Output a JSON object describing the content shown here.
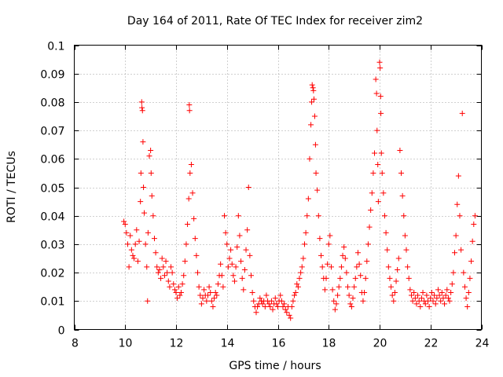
{
  "chart_data": {
    "type": "scatter",
    "title": "Day 164 of 2011, Rate Of TEC Index for receiver zim2",
    "xlabel": "GPS time / hours",
    "ylabel": "ROTI / TECUs",
    "xlim": [
      8,
      24
    ],
    "ylim": [
      0,
      0.1
    ],
    "xticks": [
      8,
      10,
      12,
      14,
      16,
      18,
      20,
      22,
      24
    ],
    "yticks": [
      0,
      0.01,
      0.02,
      0.03,
      0.04,
      0.05,
      0.06,
      0.07,
      0.08,
      0.09,
      0.1
    ],
    "xtick_labels": [
      "8",
      "10",
      "12",
      "14",
      "16",
      "18",
      "20",
      "22",
      "24"
    ],
    "ytick_labels": [
      "0",
      "0.01",
      "0.02",
      "0.03",
      "0.04",
      "0.05",
      "0.06",
      "0.07",
      "0.08",
      "0.09",
      "0.1"
    ],
    "grid": true,
    "marker": "+",
    "color": "#ff0000",
    "series": [
      {
        "name": "ROTI",
        "points": [
          [
            9.95,
            0.038
          ],
          [
            10.0,
            0.037
          ],
          [
            10.05,
            0.034
          ],
          [
            10.1,
            0.03
          ],
          [
            10.15,
            0.022
          ],
          [
            10.2,
            0.033
          ],
          [
            10.25,
            0.028
          ],
          [
            10.3,
            0.026
          ],
          [
            10.35,
            0.025
          ],
          [
            10.4,
            0.03
          ],
          [
            10.45,
            0.035
          ],
          [
            10.5,
            0.024
          ],
          [
            10.55,
            0.031
          ],
          [
            10.6,
            0.045
          ],
          [
            10.62,
            0.055
          ],
          [
            10.65,
            0.08
          ],
          [
            10.66,
            0.078
          ],
          [
            10.68,
            0.077
          ],
          [
            10.7,
            0.066
          ],
          [
            10.72,
            0.05
          ],
          [
            10.75,
            0.041
          ],
          [
            10.8,
            0.03
          ],
          [
            10.85,
            0.022
          ],
          [
            10.88,
            0.01
          ],
          [
            10.9,
            0.034
          ],
          [
            10.95,
            0.061
          ],
          [
            11.0,
            0.063
          ],
          [
            11.02,
            0.055
          ],
          [
            11.05,
            0.047
          ],
          [
            11.1,
            0.04
          ],
          [
            11.15,
            0.032
          ],
          [
            11.2,
            0.027
          ],
          [
            11.25,
            0.022
          ],
          [
            11.3,
            0.02
          ],
          [
            11.35,
            0.021
          ],
          [
            11.4,
            0.018
          ],
          [
            11.45,
            0.025
          ],
          [
            11.5,
            0.022
          ],
          [
            11.55,
            0.019
          ],
          [
            11.6,
            0.024
          ],
          [
            11.65,
            0.02
          ],
          [
            11.7,
            0.017
          ],
          [
            11.75,
            0.015
          ],
          [
            11.8,
            0.022
          ],
          [
            11.85,
            0.02
          ],
          [
            11.9,
            0.016
          ],
          [
            11.95,
            0.014
          ],
          [
            12.0,
            0.013
          ],
          [
            12.05,
            0.011
          ],
          [
            12.1,
            0.015
          ],
          [
            12.15,
            0.012
          ],
          [
            12.2,
            0.013
          ],
          [
            12.25,
            0.016
          ],
          [
            12.3,
            0.019
          ],
          [
            12.35,
            0.024
          ],
          [
            12.4,
            0.03
          ],
          [
            12.45,
            0.037
          ],
          [
            12.5,
            0.046
          ],
          [
            12.52,
            0.079
          ],
          [
            12.53,
            0.077
          ],
          [
            12.55,
            0.055
          ],
          [
            12.6,
            0.058
          ],
          [
            12.65,
            0.048
          ],
          [
            12.7,
            0.039
          ],
          [
            12.75,
            0.032
          ],
          [
            12.8,
            0.026
          ],
          [
            12.85,
            0.02
          ],
          [
            12.9,
            0.015
          ],
          [
            12.95,
            0.012
          ],
          [
            13.0,
            0.009
          ],
          [
            13.05,
            0.011
          ],
          [
            13.1,
            0.014
          ],
          [
            13.15,
            0.012
          ],
          [
            13.2,
            0.01
          ],
          [
            13.25,
            0.012
          ],
          [
            13.3,
            0.015
          ],
          [
            13.35,
            0.013
          ],
          [
            13.4,
            0.01
          ],
          [
            13.45,
            0.008
          ],
          [
            13.5,
            0.011
          ],
          [
            13.55,
            0.013
          ],
          [
            13.6,
            0.012
          ],
          [
            13.65,
            0.016
          ],
          [
            13.7,
            0.019
          ],
          [
            13.75,
            0.023
          ],
          [
            13.8,
            0.019
          ],
          [
            13.85,
            0.015
          ],
          [
            13.9,
            0.04
          ],
          [
            13.95,
            0.034
          ],
          [
            14.0,
            0.03
          ],
          [
            14.05,
            0.022
          ],
          [
            14.1,
            0.025
          ],
          [
            14.15,
            0.028
          ],
          [
            14.2,
            0.023
          ],
          [
            14.25,
            0.019
          ],
          [
            14.3,
            0.017
          ],
          [
            14.35,
            0.022
          ],
          [
            14.4,
            0.029
          ],
          [
            14.45,
            0.04
          ],
          [
            14.5,
            0.033
          ],
          [
            14.55,
            0.024
          ],
          [
            14.6,
            0.018
          ],
          [
            14.65,
            0.014
          ],
          [
            14.7,
            0.021
          ],
          [
            14.75,
            0.028
          ],
          [
            14.8,
            0.035
          ],
          [
            14.85,
            0.05
          ],
          [
            14.9,
            0.026
          ],
          [
            14.95,
            0.019
          ],
          [
            15.0,
            0.013
          ],
          [
            15.05,
            0.01
          ],
          [
            15.1,
            0.008
          ],
          [
            15.15,
            0.006
          ],
          [
            15.2,
            0.008
          ],
          [
            15.25,
            0.009
          ],
          [
            15.3,
            0.011
          ],
          [
            15.35,
            0.01
          ],
          [
            15.4,
            0.009
          ],
          [
            15.45,
            0.01
          ],
          [
            15.5,
            0.008
          ],
          [
            15.55,
            0.012
          ],
          [
            15.6,
            0.01
          ],
          [
            15.65,
            0.009
          ],
          [
            15.7,
            0.008
          ],
          [
            15.75,
            0.01
          ],
          [
            15.8,
            0.007
          ],
          [
            15.85,
            0.009
          ],
          [
            15.9,
            0.011
          ],
          [
            15.95,
            0.009
          ],
          [
            16.0,
            0.008
          ],
          [
            16.05,
            0.01
          ],
          [
            16.1,
            0.012
          ],
          [
            16.15,
            0.01
          ],
          [
            16.2,
            0.008
          ],
          [
            16.25,
            0.009
          ],
          [
            16.3,
            0.007
          ],
          [
            16.35,
            0.006
          ],
          [
            16.4,
            0.008
          ],
          [
            16.45,
            0.005
          ],
          [
            16.5,
            0.004
          ],
          [
            16.55,
            0.008
          ],
          [
            16.6,
            0.01
          ],
          [
            16.65,
            0.012
          ],
          [
            16.7,
            0.013
          ],
          [
            16.75,
            0.016
          ],
          [
            16.8,
            0.015
          ],
          [
            16.85,
            0.018
          ],
          [
            16.9,
            0.02
          ],
          [
            16.95,
            0.022
          ],
          [
            17.0,
            0.025
          ],
          [
            17.05,
            0.03
          ],
          [
            17.1,
            0.034
          ],
          [
            17.15,
            0.04
          ],
          [
            17.2,
            0.046
          ],
          [
            17.25,
            0.06
          ],
          [
            17.3,
            0.072
          ],
          [
            17.33,
            0.08
          ],
          [
            17.35,
            0.086
          ],
          [
            17.38,
            0.085
          ],
          [
            17.4,
            0.084
          ],
          [
            17.42,
            0.081
          ],
          [
            17.45,
            0.075
          ],
          [
            17.48,
            0.065
          ],
          [
            17.5,
            0.055
          ],
          [
            17.55,
            0.049
          ],
          [
            17.6,
            0.04
          ],
          [
            17.65,
            0.032
          ],
          [
            17.7,
            0.026
          ],
          [
            17.75,
            0.022
          ],
          [
            17.8,
            0.018
          ],
          [
            17.85,
            0.014
          ],
          [
            17.9,
            0.018
          ],
          [
            17.95,
            0.023
          ],
          [
            18.0,
            0.03
          ],
          [
            18.05,
            0.033
          ],
          [
            18.1,
            0.022
          ],
          [
            18.15,
            0.014
          ],
          [
            18.2,
            0.01
          ],
          [
            18.25,
            0.007
          ],
          [
            18.3,
            0.009
          ],
          [
            18.35,
            0.012
          ],
          [
            18.4,
            0.015
          ],
          [
            18.45,
            0.018
          ],
          [
            18.5,
            0.022
          ],
          [
            18.55,
            0.026
          ],
          [
            18.6,
            0.029
          ],
          [
            18.65,
            0.025
          ],
          [
            18.7,
            0.02
          ],
          [
            18.75,
            0.015
          ],
          [
            18.8,
            0.012
          ],
          [
            18.85,
            0.009
          ],
          [
            18.9,
            0.008
          ],
          [
            18.95,
            0.011
          ],
          [
            19.0,
            0.015
          ],
          [
            19.05,
            0.018
          ],
          [
            19.1,
            0.022
          ],
          [
            19.15,
            0.027
          ],
          [
            19.2,
            0.023
          ],
          [
            19.25,
            0.019
          ],
          [
            19.3,
            0.013
          ],
          [
            19.35,
            0.01
          ],
          [
            19.4,
            0.013
          ],
          [
            19.45,
            0.018
          ],
          [
            19.5,
            0.024
          ],
          [
            19.55,
            0.03
          ],
          [
            19.6,
            0.036
          ],
          [
            19.65,
            0.042
          ],
          [
            19.7,
            0.048
          ],
          [
            19.75,
            0.055
          ],
          [
            19.8,
            0.062
          ],
          [
            19.85,
            0.088
          ],
          [
            19.88,
            0.083
          ],
          [
            19.9,
            0.07
          ],
          [
            19.93,
            0.058
          ],
          [
            19.95,
            0.045
          ],
          [
            20.0,
            0.094
          ],
          [
            20.02,
            0.092
          ],
          [
            20.04,
            0.082
          ],
          [
            20.05,
            0.076
          ],
          [
            20.07,
            0.062
          ],
          [
            20.1,
            0.055
          ],
          [
            20.15,
            0.048
          ],
          [
            20.2,
            0.04
          ],
          [
            20.25,
            0.034
          ],
          [
            20.3,
            0.028
          ],
          [
            20.35,
            0.022
          ],
          [
            20.4,
            0.018
          ],
          [
            20.45,
            0.015
          ],
          [
            20.5,
            0.012
          ],
          [
            20.55,
            0.01
          ],
          [
            20.6,
            0.013
          ],
          [
            20.65,
            0.017
          ],
          [
            20.7,
            0.021
          ],
          [
            20.75,
            0.025
          ],
          [
            20.8,
            0.063
          ],
          [
            20.85,
            0.055
          ],
          [
            20.9,
            0.047
          ],
          [
            20.95,
            0.04
          ],
          [
            21.0,
            0.033
          ],
          [
            21.05,
            0.028
          ],
          [
            21.1,
            0.022
          ],
          [
            21.15,
            0.018
          ],
          [
            21.2,
            0.014
          ],
          [
            21.25,
            0.012
          ],
          [
            21.3,
            0.01
          ],
          [
            21.35,
            0.013
          ],
          [
            21.4,
            0.011
          ],
          [
            21.45,
            0.009
          ],
          [
            21.5,
            0.012
          ],
          [
            21.55,
            0.01
          ],
          [
            21.6,
            0.008
          ],
          [
            21.65,
            0.011
          ],
          [
            21.7,
            0.013
          ],
          [
            21.75,
            0.01
          ],
          [
            21.8,
            0.009
          ],
          [
            21.85,
            0.012
          ],
          [
            21.9,
            0.01
          ],
          [
            21.95,
            0.008
          ],
          [
            22.0,
            0.011
          ],
          [
            22.05,
            0.013
          ],
          [
            22.1,
            0.01
          ],
          [
            22.15,
            0.012
          ],
          [
            22.2,
            0.009
          ],
          [
            22.25,
            0.011
          ],
          [
            22.3,
            0.014
          ],
          [
            22.35,
            0.012
          ],
          [
            22.4,
            0.01
          ],
          [
            22.45,
            0.013
          ],
          [
            22.5,
            0.011
          ],
          [
            22.55,
            0.009
          ],
          [
            22.6,
            0.012
          ],
          [
            22.65,
            0.014
          ],
          [
            22.7,
            0.011
          ],
          [
            22.75,
            0.01
          ],
          [
            22.8,
            0.013
          ],
          [
            22.85,
            0.016
          ],
          [
            22.9,
            0.02
          ],
          [
            22.95,
            0.027
          ],
          [
            23.0,
            0.033
          ],
          [
            23.05,
            0.044
          ],
          [
            23.1,
            0.054
          ],
          [
            23.15,
            0.04
          ],
          [
            23.2,
            0.028
          ],
          [
            23.25,
            0.076
          ],
          [
            23.3,
            0.02
          ],
          [
            23.35,
            0.015
          ],
          [
            23.4,
            0.011
          ],
          [
            23.45,
            0.008
          ],
          [
            23.5,
            0.013
          ],
          [
            23.55,
            0.018
          ],
          [
            23.6,
            0.024
          ],
          [
            23.65,
            0.031
          ],
          [
            23.7,
            0.037
          ],
          [
            23.75,
            0.04
          ]
        ]
      }
    ]
  }
}
